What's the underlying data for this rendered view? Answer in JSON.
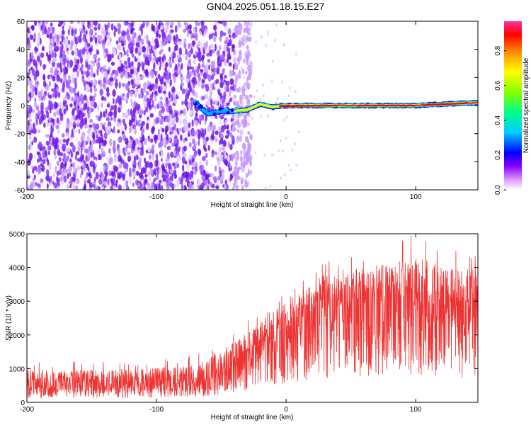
{
  "title": "GN04.2025.051.18.15.E27",
  "chart_data": [
    {
      "type": "heatmap",
      "xlabel": "Height of straight line (km)",
      "ylabel": "Frequency (Hz)",
      "xlim": [
        -200,
        148
      ],
      "ylim": [
        -60,
        60
      ],
      "x_ticks": [
        "-200",
        "-100",
        "0",
        "100"
      ],
      "y_ticks": [
        "60",
        "40",
        "20",
        "0",
        "-20",
        "-40",
        "-60"
      ],
      "colorbar": {
        "label": "Normalized spectral amplitude",
        "range": [
          0,
          0.97
        ],
        "ticks": [
          "0.0",
          "0.2",
          "0.4",
          "0.6",
          "0.8"
        ],
        "colors": [
          "#ffffff",
          "#cc66ff",
          "#6600ff",
          "#0000ff",
          "#00ffff",
          "#00ff00",
          "#ffff00",
          "#ff8800",
          "#ff0000",
          "#ff33aa"
        ]
      },
      "features": {
        "noise_region_x": [
          -200,
          -35
        ],
        "signal_line": [
          {
            "x": -68,
            "y": 0
          },
          {
            "x": -60,
            "y": -6
          },
          {
            "x": -50,
            "y": -4
          },
          {
            "x": -40,
            "y": -4
          },
          {
            "x": -30,
            "y": -3
          },
          {
            "x": -20,
            "y": 1
          },
          {
            "x": -10,
            "y": -1
          },
          {
            "x": 0,
            "y": 0
          },
          {
            "x": 20,
            "y": 0
          },
          {
            "x": 60,
            "y": 0
          },
          {
            "x": 100,
            "y": 0
          },
          {
            "x": 120,
            "y": 1
          },
          {
            "x": 148,
            "y": 2
          }
        ]
      }
    },
    {
      "type": "line",
      "xlabel": "Height of straight line (km)",
      "ylabel": "SNR (10 * v/v)",
      "xlim": [
        -200,
        148
      ],
      "ylim": [
        0,
        5000
      ],
      "x_ticks": [
        "-200",
        "-100",
        "0",
        "100"
      ],
      "y_ticks": [
        "5000",
        "4000",
        "3000",
        "2000",
        "1000",
        "0"
      ],
      "color": "#ee3333",
      "series": [
        {
          "x": [
            -200,
            -180,
            -160,
            -140,
            -120,
            -100,
            -80,
            -60,
            -50,
            -40,
            -30,
            -20,
            -10,
            0,
            10,
            20,
            30,
            40,
            50,
            60,
            80,
            100,
            120,
            140,
            148
          ],
          "values": [
            500,
            500,
            500,
            480,
            500,
            500,
            550,
            700,
            900,
            1100,
            1400,
            1700,
            2000,
            2200,
            2500,
            2700,
            2800,
            2900,
            2950,
            3000,
            3000,
            2950,
            2850,
            2700,
            2700
          ],
          "envelope_max": [
            1200,
            1150,
            1200,
            1200,
            1200,
            1250,
            1300,
            1600,
            1900,
            2100,
            2400,
            2700,
            3000,
            3300,
            3600,
            3900,
            4300,
            4100,
            4300,
            4400,
            4700,
            4900,
            4600,
            4500,
            4500
          ]
        }
      ]
    }
  ]
}
